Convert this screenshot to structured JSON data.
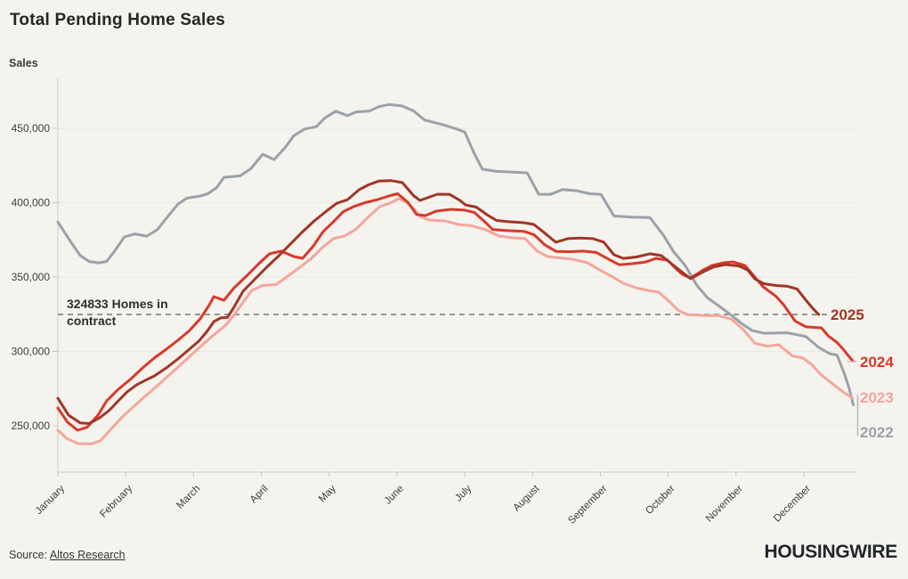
{
  "header": {
    "title": "Total Pending Home Sales"
  },
  "footer": {
    "source_prefix": "Source: ",
    "source_link": "Altos Research",
    "brand": "HOUSINGWIRE"
  },
  "chart_data": {
    "type": "line",
    "title": "Total Pending Home Sales",
    "ylabel": "Sales",
    "xlabel": "",
    "grid": "horizontal",
    "legend_position": "line-end-labels-right",
    "ylim": [
      218000,
      482000
    ],
    "x_axis": {
      "categories": [
        "January",
        "February",
        "March",
        "April",
        "May",
        "June",
        "July",
        "August",
        "September",
        "October",
        "November",
        "December"
      ]
    },
    "y_axis": {
      "ticks": [
        {
          "value": 250000,
          "label": "250,000"
        },
        {
          "value": 300000,
          "label": "300,000"
        },
        {
          "value": 350000,
          "label": "350,000"
        },
        {
          "value": 400000,
          "label": "400,000"
        },
        {
          "value": 450000,
          "label": "450,000"
        }
      ]
    },
    "annotation": {
      "value": 324833,
      "line1": "324833 Homes in",
      "line2": "contract",
      "dash_color": "#7f7f7f"
    },
    "series": [
      {
        "name": "2022",
        "color": "#9aa2a8",
        "points": [
          [
            0.0,
            387000
          ],
          [
            0.1,
            380000
          ],
          [
            0.2,
            373000
          ],
          [
            0.33,
            364500
          ],
          [
            0.46,
            360500
          ],
          [
            0.6,
            359500
          ],
          [
            0.72,
            360500
          ],
          [
            0.83,
            367000
          ],
          [
            0.98,
            377000
          ],
          [
            1.14,
            379000
          ],
          [
            1.31,
            377500
          ],
          [
            1.47,
            382000
          ],
          [
            1.6,
            389500
          ],
          [
            1.77,
            399000
          ],
          [
            1.9,
            403000
          ],
          [
            2.1,
            404500
          ],
          [
            2.21,
            406000
          ],
          [
            2.34,
            410000
          ],
          [
            2.45,
            417000
          ],
          [
            2.69,
            418000
          ],
          [
            2.85,
            423000
          ],
          [
            3.02,
            432500
          ],
          [
            3.19,
            429000
          ],
          [
            3.35,
            437000
          ],
          [
            3.48,
            445000
          ],
          [
            3.64,
            449500
          ],
          [
            3.81,
            451000
          ],
          [
            3.94,
            457000
          ],
          [
            4.1,
            461500
          ],
          [
            4.27,
            458500
          ],
          [
            4.4,
            461000
          ],
          [
            4.59,
            461500
          ],
          [
            4.73,
            464500
          ],
          [
            4.88,
            466000
          ],
          [
            5.08,
            465000
          ],
          [
            5.25,
            461500
          ],
          [
            5.41,
            455500
          ],
          [
            5.67,
            452500
          ],
          [
            5.88,
            449500
          ],
          [
            6.0,
            447500
          ],
          [
            6.13,
            434000
          ],
          [
            6.26,
            422500
          ],
          [
            6.47,
            421000
          ],
          [
            6.72,
            420500
          ],
          [
            6.92,
            420000
          ],
          [
            7.09,
            405700
          ],
          [
            7.26,
            405500
          ],
          [
            7.44,
            408800
          ],
          [
            7.65,
            408000
          ],
          [
            7.84,
            406000
          ],
          [
            8.01,
            405500
          ],
          [
            8.2,
            391000
          ],
          [
            8.47,
            390300
          ],
          [
            8.73,
            390000
          ],
          [
            8.93,
            378000
          ],
          [
            9.08,
            367000
          ],
          [
            9.25,
            357800
          ],
          [
            9.42,
            344600
          ],
          [
            9.58,
            336000
          ],
          [
            9.78,
            329500
          ],
          [
            9.95,
            323600
          ],
          [
            10.08,
            318800
          ],
          [
            10.24,
            314000
          ],
          [
            10.41,
            312200
          ],
          [
            10.76,
            312500
          ],
          [
            11.03,
            310000
          ],
          [
            11.22,
            302700
          ],
          [
            11.38,
            298500
          ],
          [
            11.49,
            297500
          ],
          [
            11.59,
            286000
          ],
          [
            11.67,
            275000
          ],
          [
            11.73,
            264000
          ]
        ]
      },
      {
        "name": "2023",
        "color": "#f4a69d",
        "points": [
          [
            0.0,
            247000
          ],
          [
            0.13,
            241500
          ],
          [
            0.3,
            238000
          ],
          [
            0.49,
            237800
          ],
          [
            0.63,
            240000
          ],
          [
            0.79,
            248000
          ],
          [
            0.95,
            256000
          ],
          [
            1.12,
            263000
          ],
          [
            1.29,
            270000
          ],
          [
            1.47,
            277000
          ],
          [
            1.64,
            284000
          ],
          [
            1.81,
            291000
          ],
          [
            2.0,
            299000
          ],
          [
            2.17,
            306000
          ],
          [
            2.31,
            311500
          ],
          [
            2.47,
            317500
          ],
          [
            2.6,
            324500
          ],
          [
            2.73,
            333000
          ],
          [
            2.86,
            341000
          ],
          [
            3.02,
            344300
          ],
          [
            3.22,
            345000
          ],
          [
            3.39,
            350600
          ],
          [
            3.57,
            356600
          ],
          [
            3.74,
            362600
          ],
          [
            3.91,
            370300
          ],
          [
            4.07,
            376000
          ],
          [
            4.23,
            377600
          ],
          [
            4.4,
            382300
          ],
          [
            4.57,
            390000
          ],
          [
            4.75,
            397500
          ],
          [
            4.9,
            399700
          ],
          [
            5.03,
            402700
          ],
          [
            5.16,
            399700
          ],
          [
            5.25,
            396000
          ],
          [
            5.34,
            390700
          ],
          [
            5.47,
            388300
          ],
          [
            5.71,
            387700
          ],
          [
            5.91,
            385300
          ],
          [
            6.08,
            384700
          ],
          [
            6.3,
            382000
          ],
          [
            6.5,
            377600
          ],
          [
            6.69,
            376400
          ],
          [
            6.89,
            375800
          ],
          [
            7.07,
            367400
          ],
          [
            7.22,
            363800
          ],
          [
            7.42,
            362800
          ],
          [
            7.61,
            361800
          ],
          [
            7.81,
            359500
          ],
          [
            7.98,
            355000
          ],
          [
            8.16,
            350600
          ],
          [
            8.34,
            345800
          ],
          [
            8.52,
            342800
          ],
          [
            8.7,
            341000
          ],
          [
            8.86,
            339800
          ],
          [
            9.02,
            333500
          ],
          [
            9.15,
            327500
          ],
          [
            9.28,
            324800
          ],
          [
            9.52,
            324200
          ],
          [
            9.75,
            324000
          ],
          [
            9.94,
            321500
          ],
          [
            10.11,
            314500
          ],
          [
            10.28,
            305500
          ],
          [
            10.46,
            303500
          ],
          [
            10.63,
            304500
          ],
          [
            10.83,
            297000
          ],
          [
            10.99,
            295500
          ],
          [
            11.12,
            291000
          ],
          [
            11.25,
            284500
          ],
          [
            11.41,
            278700
          ],
          [
            11.58,
            272700
          ],
          [
            11.72,
            268500
          ]
        ]
      },
      {
        "name": "2024",
        "color": "#d9392b",
        "points": [
          [
            0.0,
            262000
          ],
          [
            0.14,
            252500
          ],
          [
            0.29,
            247000
          ],
          [
            0.43,
            249000
          ],
          [
            0.59,
            257000
          ],
          [
            0.72,
            266700
          ],
          [
            0.89,
            274500
          ],
          [
            1.08,
            281700
          ],
          [
            1.25,
            288900
          ],
          [
            1.42,
            295500
          ],
          [
            1.6,
            301500
          ],
          [
            1.77,
            307500
          ],
          [
            1.94,
            314000
          ],
          [
            2.1,
            322000
          ],
          [
            2.23,
            331000
          ],
          [
            2.3,
            336800
          ],
          [
            2.45,
            334400
          ],
          [
            2.6,
            342800
          ],
          [
            2.78,
            350600
          ],
          [
            2.95,
            358400
          ],
          [
            3.12,
            365600
          ],
          [
            3.29,
            367400
          ],
          [
            3.48,
            363800
          ],
          [
            3.61,
            362600
          ],
          [
            3.77,
            371000
          ],
          [
            3.91,
            380500
          ],
          [
            4.07,
            387500
          ],
          [
            4.21,
            394000
          ],
          [
            4.37,
            397500
          ],
          [
            4.53,
            400000
          ],
          [
            4.71,
            402000
          ],
          [
            4.88,
            404500
          ],
          [
            5.01,
            406000
          ],
          [
            5.16,
            400300
          ],
          [
            5.29,
            392000
          ],
          [
            5.42,
            391300
          ],
          [
            5.58,
            394300
          ],
          [
            5.8,
            395500
          ],
          [
            6.0,
            395000
          ],
          [
            6.14,
            393500
          ],
          [
            6.3,
            387000
          ],
          [
            6.41,
            382000
          ],
          [
            6.63,
            381200
          ],
          [
            6.87,
            380700
          ],
          [
            7.02,
            378500
          ],
          [
            7.18,
            371600
          ],
          [
            7.35,
            367200
          ],
          [
            7.55,
            367000
          ],
          [
            7.74,
            367400
          ],
          [
            7.94,
            366500
          ],
          [
            8.16,
            361000
          ],
          [
            8.28,
            358200
          ],
          [
            8.47,
            359000
          ],
          [
            8.66,
            360000
          ],
          [
            8.82,
            362500
          ],
          [
            8.99,
            361400
          ],
          [
            9.12,
            355400
          ],
          [
            9.21,
            351800
          ],
          [
            9.33,
            349300
          ],
          [
            9.52,
            354800
          ],
          [
            9.65,
            357800
          ],
          [
            9.82,
            359600
          ],
          [
            9.95,
            360200
          ],
          [
            10.13,
            357800
          ],
          [
            10.21,
            353600
          ],
          [
            10.3,
            348700
          ],
          [
            10.4,
            343400
          ],
          [
            10.59,
            337000
          ],
          [
            10.7,
            331500
          ],
          [
            10.87,
            320500
          ],
          [
            11.03,
            316500
          ],
          [
            11.26,
            315800
          ],
          [
            11.36,
            310400
          ],
          [
            11.49,
            306000
          ],
          [
            11.58,
            301500
          ],
          [
            11.65,
            297500
          ],
          [
            11.72,
            293700
          ]
        ]
      },
      {
        "name": "2025",
        "color": "#a13527",
        "points": [
          [
            0.0,
            268500
          ],
          [
            0.16,
            257000
          ],
          [
            0.33,
            252000
          ],
          [
            0.46,
            251500
          ],
          [
            0.62,
            255500
          ],
          [
            0.76,
            260500
          ],
          [
            0.89,
            266700
          ],
          [
            1.02,
            272700
          ],
          [
            1.16,
            277500
          ],
          [
            1.31,
            281000
          ],
          [
            1.42,
            283500
          ],
          [
            1.6,
            288900
          ],
          [
            1.77,
            294900
          ],
          [
            1.94,
            301500
          ],
          [
            2.08,
            307000
          ],
          [
            2.2,
            313500
          ],
          [
            2.3,
            320000
          ],
          [
            2.4,
            322500
          ],
          [
            2.5,
            322800
          ],
          [
            2.6,
            330000
          ],
          [
            2.73,
            340400
          ],
          [
            2.91,
            348800
          ],
          [
            3.08,
            356600
          ],
          [
            3.26,
            364400
          ],
          [
            3.44,
            372700
          ],
          [
            3.61,
            380500
          ],
          [
            3.78,
            387700
          ],
          [
            3.96,
            394300
          ],
          [
            4.11,
            399500
          ],
          [
            4.27,
            402000
          ],
          [
            4.44,
            408600
          ],
          [
            4.58,
            412000
          ],
          [
            4.73,
            414500
          ],
          [
            4.92,
            414800
          ],
          [
            5.08,
            413500
          ],
          [
            5.25,
            404500
          ],
          [
            5.34,
            401500
          ],
          [
            5.45,
            403300
          ],
          [
            5.6,
            405700
          ],
          [
            5.78,
            405500
          ],
          [
            5.93,
            401500
          ],
          [
            6.01,
            398500
          ],
          [
            6.17,
            397000
          ],
          [
            6.34,
            391500
          ],
          [
            6.47,
            388000
          ],
          [
            6.65,
            387200
          ],
          [
            6.87,
            386500
          ],
          [
            7.02,
            385300
          ],
          [
            7.18,
            379500
          ],
          [
            7.34,
            373400
          ],
          [
            7.52,
            375800
          ],
          [
            7.7,
            376200
          ],
          [
            7.89,
            375800
          ],
          [
            8.05,
            373500
          ],
          [
            8.2,
            365000
          ],
          [
            8.34,
            362500
          ],
          [
            8.53,
            363500
          ],
          [
            8.73,
            365600
          ],
          [
            8.9,
            364400
          ],
          [
            9.08,
            357800
          ],
          [
            9.23,
            352400
          ],
          [
            9.33,
            348900
          ],
          [
            9.52,
            353600
          ],
          [
            9.67,
            356800
          ],
          [
            9.84,
            358400
          ],
          [
            10.04,
            357500
          ],
          [
            10.17,
            354800
          ],
          [
            10.28,
            348700
          ],
          [
            10.41,
            345500
          ],
          [
            10.59,
            344300
          ],
          [
            10.76,
            343800
          ],
          [
            10.9,
            342000
          ],
          [
            11.03,
            334500
          ],
          [
            11.13,
            329000
          ],
          [
            11.22,
            324833
          ]
        ]
      }
    ]
  }
}
